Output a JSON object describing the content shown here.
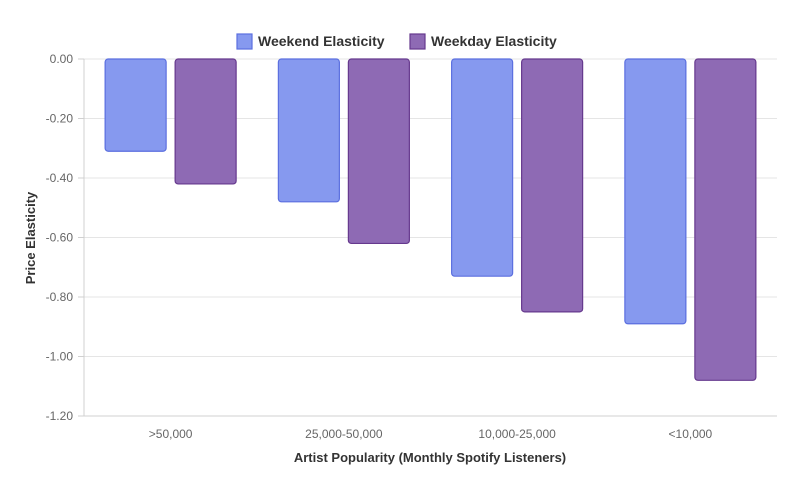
{
  "chart_data": {
    "type": "bar",
    "categories": [
      ">50,000",
      "25,000-50,000",
      "10,000-25,000",
      "<10,000"
    ],
    "series": [
      {
        "name": "Weekend Elasticity",
        "values": [
          -0.31,
          -0.48,
          -0.73,
          -0.89
        ],
        "fill": "#8699ef",
        "stroke": "#5b6fdf"
      },
      {
        "name": "Weekday Elasticity",
        "values": [
          -0.42,
          -0.62,
          -0.85,
          -1.08
        ],
        "fill": "#8e6ab4",
        "stroke": "#66398e"
      }
    ],
    "xlabel": "Artist Popularity (Monthly Spotify Listeners)",
    "ylabel": "Price Elasticity",
    "ylim": [
      -1.2,
      0
    ],
    "yticks": [
      "0.00",
      "-0.20",
      "-0.40",
      "-0.60",
      "-0.80",
      "-1.00",
      "-1.20"
    ],
    "ytick_values": [
      0,
      -0.2,
      -0.4,
      -0.6,
      -0.8,
      -1.0,
      -1.2
    ],
    "grid": true,
    "legend_position": "top-center"
  }
}
